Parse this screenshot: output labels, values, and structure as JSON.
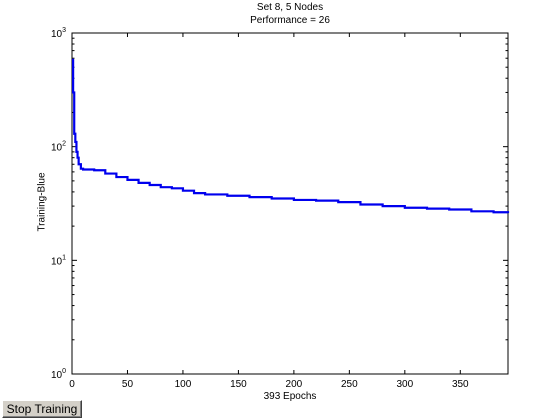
{
  "button": {
    "stop_label": "Stop Training"
  },
  "chart_data": {
    "type": "line",
    "title": "Set 8, 5 Nodes",
    "subtitle": "Performance = 26",
    "xlabel": "393 Epochs",
    "ylabel": "Training-Blue",
    "xlim": [
      0,
      393
    ],
    "ylim": [
      1,
      1000
    ],
    "yscale": "log",
    "xticks": [
      0,
      50,
      100,
      150,
      200,
      250,
      300,
      350
    ],
    "yticks": [
      {
        "value": 1,
        "base": "10",
        "exp": "0"
      },
      {
        "value": 10,
        "base": "10",
        "exp": "1"
      },
      {
        "value": 100,
        "base": "10",
        "exp": "2"
      },
      {
        "value": 1000,
        "base": "10",
        "exp": "3"
      }
    ],
    "grid": false,
    "line_color": "#0000ee",
    "series": [
      {
        "x": [
          0,
          1,
          2,
          3,
          4,
          5,
          6,
          8,
          10,
          20,
          30,
          40,
          50,
          60,
          70,
          80,
          90,
          100,
          110,
          120,
          140,
          160,
          180,
          200,
          220,
          240,
          260,
          280,
          300,
          320,
          340,
          360,
          380,
          393
        ],
        "y": [
          580,
          300,
          130,
          110,
          90,
          80,
          70,
          64,
          63,
          62,
          58,
          54,
          51,
          48,
          46,
          44,
          43,
          41,
          39,
          38,
          37,
          36,
          35,
          34,
          33.5,
          32.5,
          31,
          30,
          29,
          28.5,
          28,
          27,
          26.5,
          26
        ]
      }
    ]
  }
}
